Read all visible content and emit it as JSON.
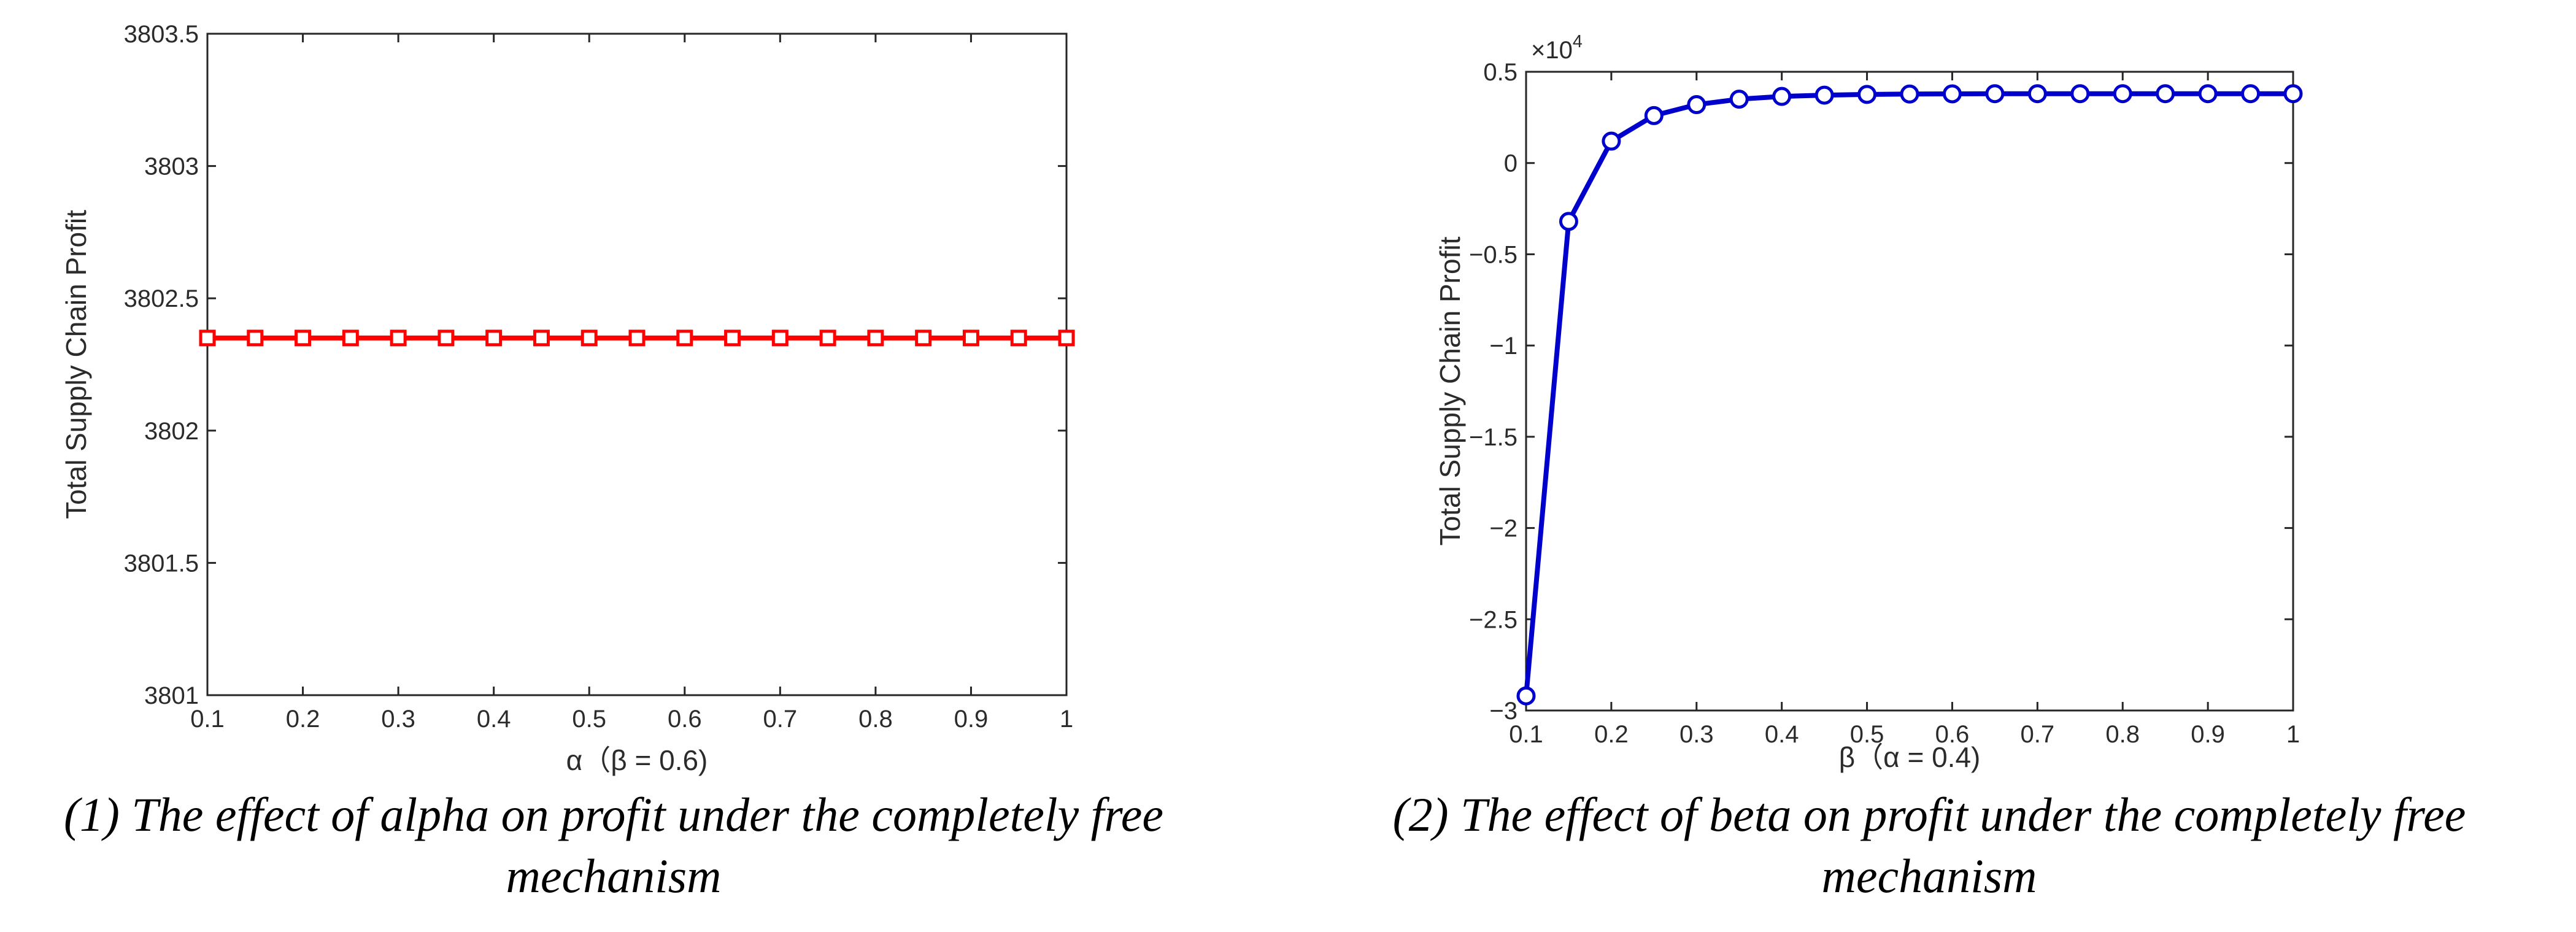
{
  "chart_data": [
    {
      "type": "line",
      "title": "",
      "xlabel": "α（β = 0.6)",
      "ylabel": "Total Supply Chain Profit",
      "x": [
        0.1,
        0.15,
        0.2,
        0.25,
        0.3,
        0.35,
        0.4,
        0.45,
        0.5,
        0.55,
        0.6,
        0.65,
        0.7,
        0.75,
        0.8,
        0.85,
        0.9,
        0.95,
        1.0
      ],
      "series": [
        {
          "name": "profit",
          "color": "#ff0000",
          "marker": "square",
          "values": [
            3802.35,
            3802.35,
            3802.35,
            3802.35,
            3802.35,
            3802.35,
            3802.35,
            3802.35,
            3802.35,
            3802.35,
            3802.35,
            3802.35,
            3802.35,
            3802.35,
            3802.35,
            3802.35,
            3802.35,
            3802.35,
            3802.35
          ]
        }
      ],
      "xlim": [
        0.1,
        1
      ],
      "ylim": [
        3801,
        3803.5
      ],
      "xticks": [
        0.1,
        0.2,
        0.3,
        0.4,
        0.5,
        0.6,
        0.7,
        0.8,
        0.9,
        1
      ],
      "xtick_labels": [
        "0.1",
        "0.2",
        "0.3",
        "0.4",
        "0.5",
        "0.6",
        "0.7",
        "0.8",
        "0.9",
        "1"
      ],
      "yticks": [
        3801,
        3801.5,
        3802,
        3802.5,
        3803,
        3803.5
      ],
      "ytick_labels": [
        "3801",
        "3801.5",
        "3802",
        "3802.5",
        "3803",
        "3803.5"
      ],
      "exponent_label": "",
      "grid": false,
      "caption": "(1) The effect of alpha on profit under the completely free mechanism"
    },
    {
      "type": "line",
      "title": "",
      "xlabel": "β（α = 0.4)",
      "ylabel": "Total Supply Chain Profit",
      "x": [
        0.1,
        0.15,
        0.2,
        0.25,
        0.3,
        0.35,
        0.4,
        0.45,
        0.5,
        0.55,
        0.6,
        0.65,
        0.7,
        0.75,
        0.8,
        0.85,
        0.9,
        0.95,
        1.0
      ],
      "series": [
        {
          "name": "profit (×10^4)",
          "color": "#0000cc",
          "marker": "circle",
          "values": [
            -2.92,
            -0.32,
            0.12,
            0.26,
            0.32,
            0.35,
            0.365,
            0.372,
            0.376,
            0.378,
            0.379,
            0.38,
            0.38,
            0.38,
            0.38,
            0.38,
            0.38,
            0.38,
            0.38
          ]
        }
      ],
      "xlim": [
        0.1,
        1
      ],
      "ylim": [
        -3,
        0.5
      ],
      "xticks": [
        0.1,
        0.2,
        0.3,
        0.4,
        0.5,
        0.6,
        0.7,
        0.8,
        0.9,
        1
      ],
      "xtick_labels": [
        "0.1",
        "0.2",
        "0.3",
        "0.4",
        "0.5",
        "0.6",
        "0.7",
        "0.8",
        "0.9",
        "1"
      ],
      "yticks": [
        -3,
        -2.5,
        -2,
        -1.5,
        -1,
        -0.5,
        0,
        0.5
      ],
      "ytick_labels": [
        "−3",
        "−2.5",
        "−2",
        "−1.5",
        "−1",
        "−0.5",
        "0",
        "0.5"
      ],
      "exponent_label": "×10",
      "exponent_power": "4",
      "grid": false,
      "caption": "(2) The effect of beta on profit under the completely free mechanism"
    }
  ]
}
